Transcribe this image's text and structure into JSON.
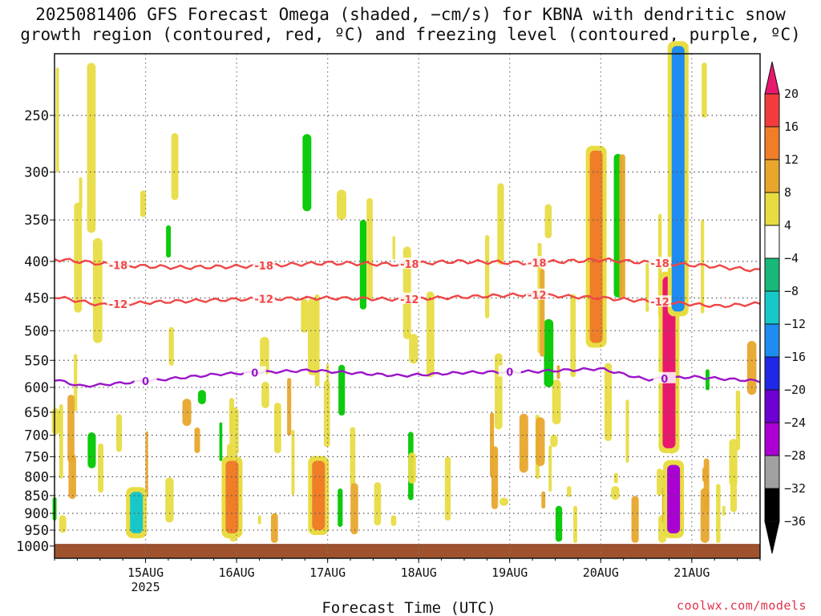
{
  "title": {
    "line1": "2025081406 GFS Forecast Omega (shaded, −cm/s) for KBNA with dendritic snow",
    "line2": "growth region (contoured, red, ºC) and freezing level (contoured, purple, ºC)"
  },
  "watermark": "coolwx.com/models",
  "chart_data": {
    "type": "heatmap",
    "title": "2025081406 GFS Forecast Omega (shaded, −cm/s) for KBNA with dendritic snow growth region (contoured, red, ºC) and freezing level (contoured, purple, ºC)",
    "xlabel": "Forecast Time (UTC)",
    "ylabel": "",
    "y_scale": "log-pressure (inverted)",
    "yticks": [
      250,
      300,
      350,
      400,
      450,
      500,
      550,
      600,
      650,
      700,
      750,
      800,
      850,
      900,
      950,
      1000
    ],
    "x_ticks": [
      "15AUG",
      "16AUG",
      "17AUG",
      "18AUG",
      "19AUG",
      "20AUG",
      "21AUG"
    ],
    "x_year_label": "2025",
    "x_range_days": [
      14.0,
      21.75
    ],
    "grid": true,
    "colorbar": {
      "labels": [
        "20",
        "16",
        "12",
        "8",
        "4",
        "−4",
        "−8",
        "−12",
        "−16",
        "−20",
        "−24",
        "−28",
        "−32",
        "−36"
      ],
      "colors": [
        "#e8186e",
        "#f23c3c",
        "#f07d28",
        "#e8a62d",
        "#e8dc43",
        "#ffffff",
        "#00c800",
        "#18b878",
        "#18c8c8",
        "#1e8cf0",
        "#1e28e6",
        "#6e00d2",
        "#aa00d2",
        "#a0a0a0",
        "#000000"
      ]
    },
    "contours": [
      {
        "label": "-18",
        "color": "#f04646",
        "level_hPa": [
          397,
          405,
          408,
          406,
          402,
          404,
          400,
          402,
          398,
          402,
          406,
          412
        ],
        "x_days": [
          14.0,
          14.7,
          15.4,
          16.2,
          17.0,
          17.8,
          18.4,
          19.2,
          20.0,
          20.6,
          21.2,
          21.75
        ]
      },
      {
        "label": "-12",
        "color": "#f04646",
        "level_hPa": [
          448,
          460,
          455,
          452,
          450,
          452,
          448,
          445,
          450,
          455,
          462,
          458
        ],
        "x_days": [
          14.0,
          14.5,
          15.3,
          16.0,
          17.0,
          17.8,
          18.6,
          19.2,
          20.0,
          20.6,
          21.3,
          21.75
        ]
      },
      {
        "label": "0",
        "color": "#9b14c8",
        "level_hPa": [
          585,
          598,
          588,
          575,
          568,
          578,
          572,
          570,
          565,
          585,
          580,
          588
        ],
        "x_days": [
          14.0,
          14.3,
          15.0,
          15.8,
          16.8,
          17.8,
          18.5,
          19.3,
          20.0,
          20.5,
          21.0,
          21.75
        ]
      }
    ],
    "omega_features": [
      {
        "day": 19.95,
        "p_top": 280,
        "p_bottom": 520,
        "value": 12
      },
      {
        "day": 20.75,
        "p_top": 420,
        "p_bottom": 730,
        "value": 20
      },
      {
        "day": 20.8,
        "p_top": 770,
        "p_bottom": 960,
        "value": -28
      },
      {
        "day": 20.85,
        "p_top": 200,
        "p_bottom": 470,
        "value": -16
      },
      {
        "day": 15.95,
        "p_top": 760,
        "p_bottom": 960,
        "value": 12
      },
      {
        "day": 16.9,
        "p_top": 760,
        "p_bottom": 950,
        "value": 12
      },
      {
        "day": 14.9,
        "p_top": 840,
        "p_bottom": 960,
        "value": -12
      }
    ]
  }
}
